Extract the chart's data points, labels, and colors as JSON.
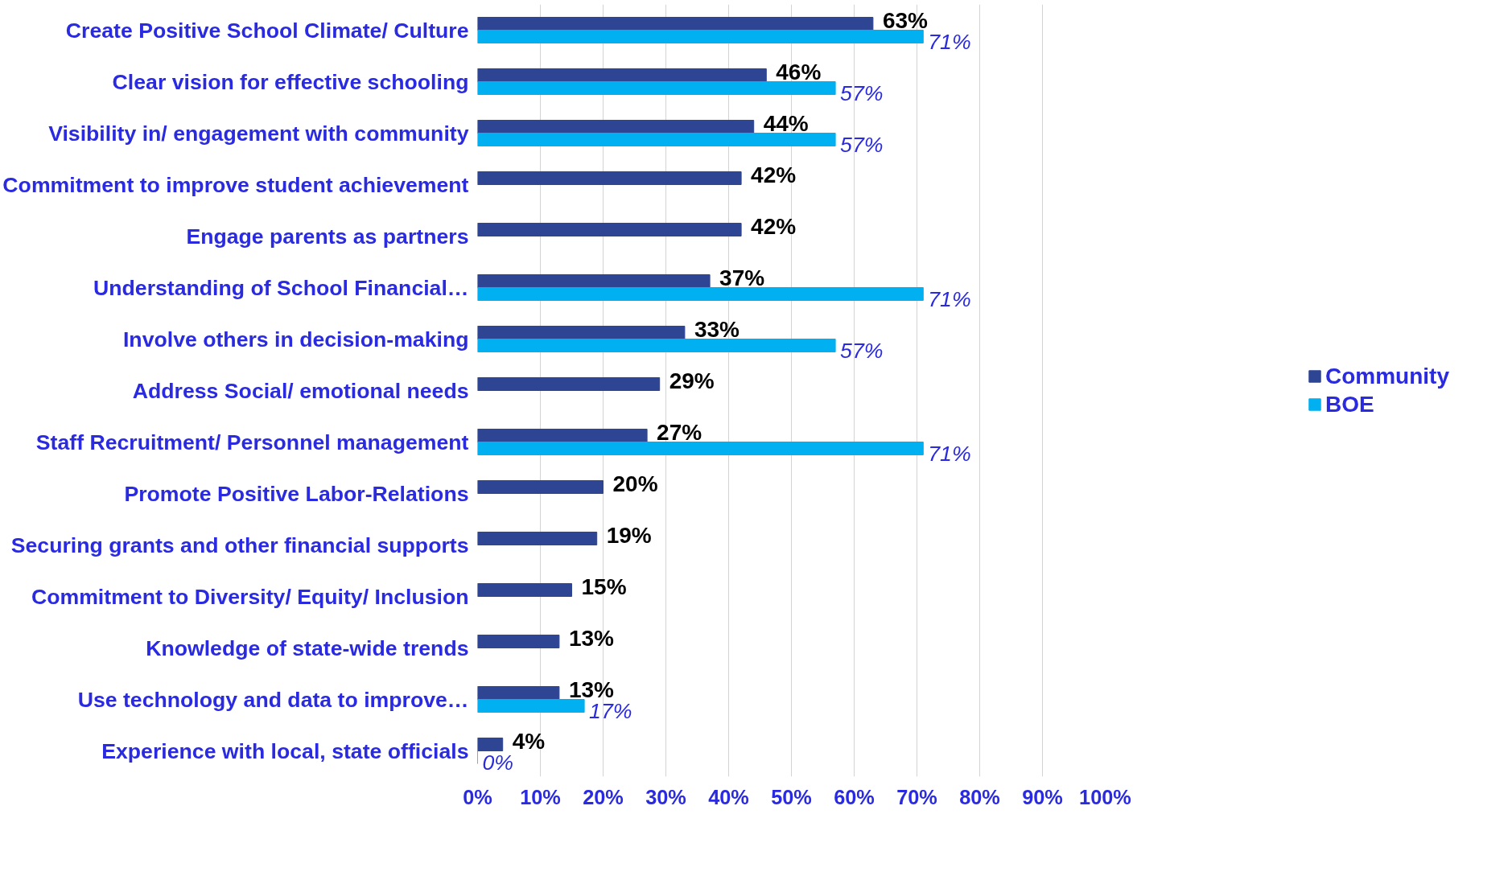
{
  "chart_data": {
    "type": "bar",
    "orientation": "horizontal",
    "categories": [
      "Create Positive School Climate/ Culture",
      "Clear vision for effective schooling",
      "Visibility in/ engagement with community",
      "Commitment to improve student achievement",
      "Engage parents as partners",
      "Understanding of School Financial…",
      "Involve others in decision-making",
      "Address Social/ emotional needs",
      "Staff Recruitment/ Personnel management",
      "Promote Positive Labor-Relations",
      "Securing grants and other financial supports",
      "Commitment to Diversity/ Equity/ Inclusion",
      "Knowledge of state-wide trends",
      "Use technology and data to improve…",
      "Experience with local, state officials"
    ],
    "series": [
      {
        "name": "Community",
        "color": "#2e4593",
        "values": [
          63,
          46,
          44,
          42,
          42,
          37,
          33,
          29,
          27,
          20,
          19,
          15,
          13,
          13,
          4
        ],
        "value_labels": [
          "63%",
          "46%",
          "44%",
          "42%",
          "42%",
          "37%",
          "33%",
          "29%",
          "27%",
          "20%",
          "19%",
          "15%",
          "13%",
          "13%",
          "4%"
        ]
      },
      {
        "name": "BOE",
        "color": "#00b0f0",
        "values": [
          71,
          57,
          57,
          null,
          null,
          71,
          57,
          null,
          71,
          null,
          null,
          null,
          null,
          17,
          0
        ],
        "value_labels": [
          "71%",
          "57%",
          "57%",
          null,
          null,
          "71%",
          "57%",
          null,
          "71%",
          null,
          null,
          null,
          null,
          "17%",
          "0%"
        ]
      }
    ],
    "xlim": [
      0,
      100
    ],
    "xticks": [
      {
        "value": 0,
        "label": "0%"
      },
      {
        "value": 10,
        "label": "10%"
      },
      {
        "value": 20,
        "label": "20%"
      },
      {
        "value": 30,
        "label": "30%"
      },
      {
        "value": 40,
        "label": "40%"
      },
      {
        "value": 50,
        "label": "50%"
      },
      {
        "value": 60,
        "label": "60%"
      },
      {
        "value": 70,
        "label": "70%"
      },
      {
        "value": 80,
        "label": "80%"
      },
      {
        "value": 90,
        "label": "90%"
      },
      {
        "value": 100,
        "label": "100%"
      }
    ],
    "grid": "x",
    "legend": "right"
  }
}
